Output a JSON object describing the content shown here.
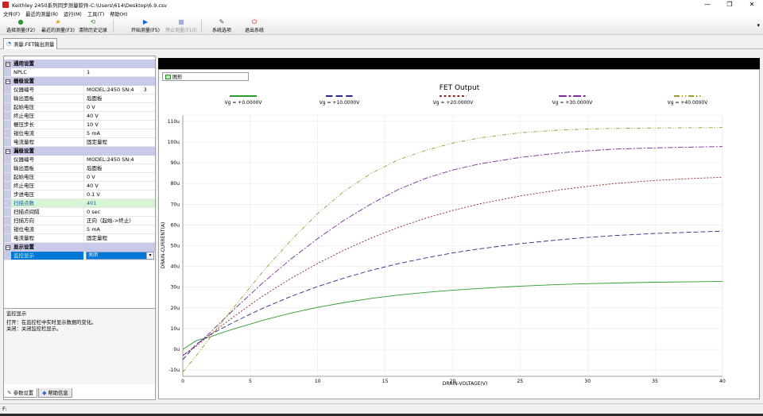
{
  "window": {
    "title": "Keithley 2450系列同步测量软件-C:\\Users\\614\\Desktop\\6.9.csv",
    "controls": [
      "—",
      "❐",
      "✕"
    ]
  },
  "menu": [
    "文件(F)",
    "最近的测量(R)",
    "运行(M)",
    "工具(T)",
    "帮助(H)"
  ],
  "toolbar": {
    "select_measure": "选择测量(F2)",
    "recent_measure": "最近的测量(F3)",
    "clear_history": "清除历史记录",
    "start_measure": "开始测量(F5)",
    "stop_measure": "停止测量(F10)",
    "system_options": "系统选项",
    "exit_system": "退出系统"
  },
  "doc_tab": "测量:FET输出测量",
  "properties": {
    "general": {
      "header": "通用设置",
      "rows": [
        {
          "key": "NPLC",
          "value": "1"
        }
      ]
    },
    "gate": {
      "header": "栅极设置",
      "rows": [
        {
          "key": "仪器编号",
          "value": "MODEL:2450 SN:4",
          "extra": "3"
        },
        {
          "key": "输出面板",
          "value": "后面板"
        },
        {
          "key": "起始电压",
          "value": "0 V"
        },
        {
          "key": "终止电压",
          "value": "40 V"
        },
        {
          "key": "栅压步长",
          "value": "10 V"
        },
        {
          "key": "钳位电流",
          "value": "5 mA"
        },
        {
          "key": "电流量程",
          "value": "固定量程"
        }
      ]
    },
    "drain": {
      "header": "漏极设置",
      "rows": [
        {
          "key": "仪器编号",
          "value": "MODEL:2450 SN:4"
        },
        {
          "key": "输出面板",
          "value": "后面板"
        },
        {
          "key": "起始电压",
          "value": "0 V"
        },
        {
          "key": "终止电压",
          "value": "40 V"
        },
        {
          "key": "步进电压",
          "value": "0.1 V"
        },
        {
          "key": "扫描点数",
          "value": "401"
        },
        {
          "key": "扫描点间隔",
          "value": "0 sec"
        },
        {
          "key": "扫描方向",
          "value": "正向（起始->终止）"
        },
        {
          "key": "钳位电流",
          "value": "5 mA"
        },
        {
          "key": "电流量程",
          "value": "固定量程"
        }
      ]
    },
    "display": {
      "header": "显示设置",
      "rows": [
        {
          "key": "监控显示",
          "value": "关闭"
        }
      ]
    }
  },
  "help": {
    "title": "监控显示",
    "line1": "打开：在监控栏中实时显示数据的变化。",
    "line2": "关闭：关闭监控栏显示。"
  },
  "bottom_tabs": {
    "params": "参数设置",
    "help": "帮助信息"
  },
  "graph_tab": "图形",
  "status_text": "F:",
  "chart_data": {
    "type": "line",
    "title": "FET Output",
    "xlabel": "DRAIN-VOLTAGE(V)",
    "ylabel": "DRAIN-CURRENT(A)",
    "xlim": [
      0,
      40
    ],
    "ylim": [
      -13,
      113
    ],
    "xticks": [
      0,
      5,
      10,
      15,
      20,
      25,
      30,
      35,
      40
    ],
    "yticks": [
      -10,
      0,
      10,
      20,
      30,
      40,
      50,
      60,
      70,
      80,
      90,
      100,
      110
    ],
    "ytick_suffix": "u",
    "grid": true,
    "legend_position": "top",
    "x": [
      0,
      1,
      2,
      3,
      4,
      5,
      6,
      8,
      10,
      12,
      14,
      16,
      18,
      20,
      22,
      25,
      28,
      30,
      32,
      35,
      38,
      40
    ],
    "series": [
      {
        "name": "Vg = +0.0000V",
        "color": "#2e9a2e",
        "dash": "",
        "values": [
          0,
          4.2,
          6.0,
          8.2,
          10.3,
          12.2,
          14.1,
          17.5,
          20.3,
          22.6,
          24.6,
          26.2,
          27.5,
          28.5,
          29.4,
          30.5,
          31.3,
          31.7,
          32.0,
          32.4,
          32.6,
          32.8
        ]
      },
      {
        "name": "Vg = +10.0000V",
        "color": "#2a2a88",
        "dash": "6,3",
        "values": [
          -5,
          2.5,
          7.0,
          10.5,
          13.8,
          17.0,
          20.0,
          25.5,
          30.3,
          34.5,
          38.2,
          41.4,
          44.1,
          46.5,
          48.5,
          51.0,
          52.9,
          54.0,
          54.9,
          55.9,
          56.6,
          57.0
        ]
      },
      {
        "name": "Vg = +20.0000V",
        "color": "#8a2020",
        "dash": "2,2",
        "values": [
          -3,
          1.5,
          7.0,
          12.0,
          16.8,
          21.5,
          26.0,
          34.2,
          41.5,
          48.0,
          53.8,
          58.9,
          63.3,
          67.0,
          70.2,
          74.0,
          77.0,
          78.6,
          80.0,
          81.5,
          82.5,
          83.0
        ]
      },
      {
        "name": "Vg = +30.0000V",
        "color": "#7a2a9a",
        "dash": "7,2,2,2",
        "values": [
          -3,
          2.0,
          8.0,
          14.3,
          20.5,
          26.5,
          32.5,
          43.5,
          53.5,
          62.5,
          70.3,
          77.2,
          82.5,
          86.5,
          89.5,
          92.6,
          94.8,
          95.8,
          96.6,
          97.2,
          97.6,
          97.8
        ]
      },
      {
        "name": "Vg = +40.0000V",
        "color": "#9a9a30",
        "dash": "5,2,1,2,1,2",
        "values": [
          -11,
          -3.0,
          5.5,
          14.0,
          22.0,
          30.0,
          38.0,
          52.5,
          65.5,
          76.5,
          85.0,
          91.5,
          96.0,
          99.5,
          102.0,
          104.5,
          105.8,
          106.3,
          106.6,
          106.8,
          106.9,
          107.0
        ]
      }
    ]
  }
}
